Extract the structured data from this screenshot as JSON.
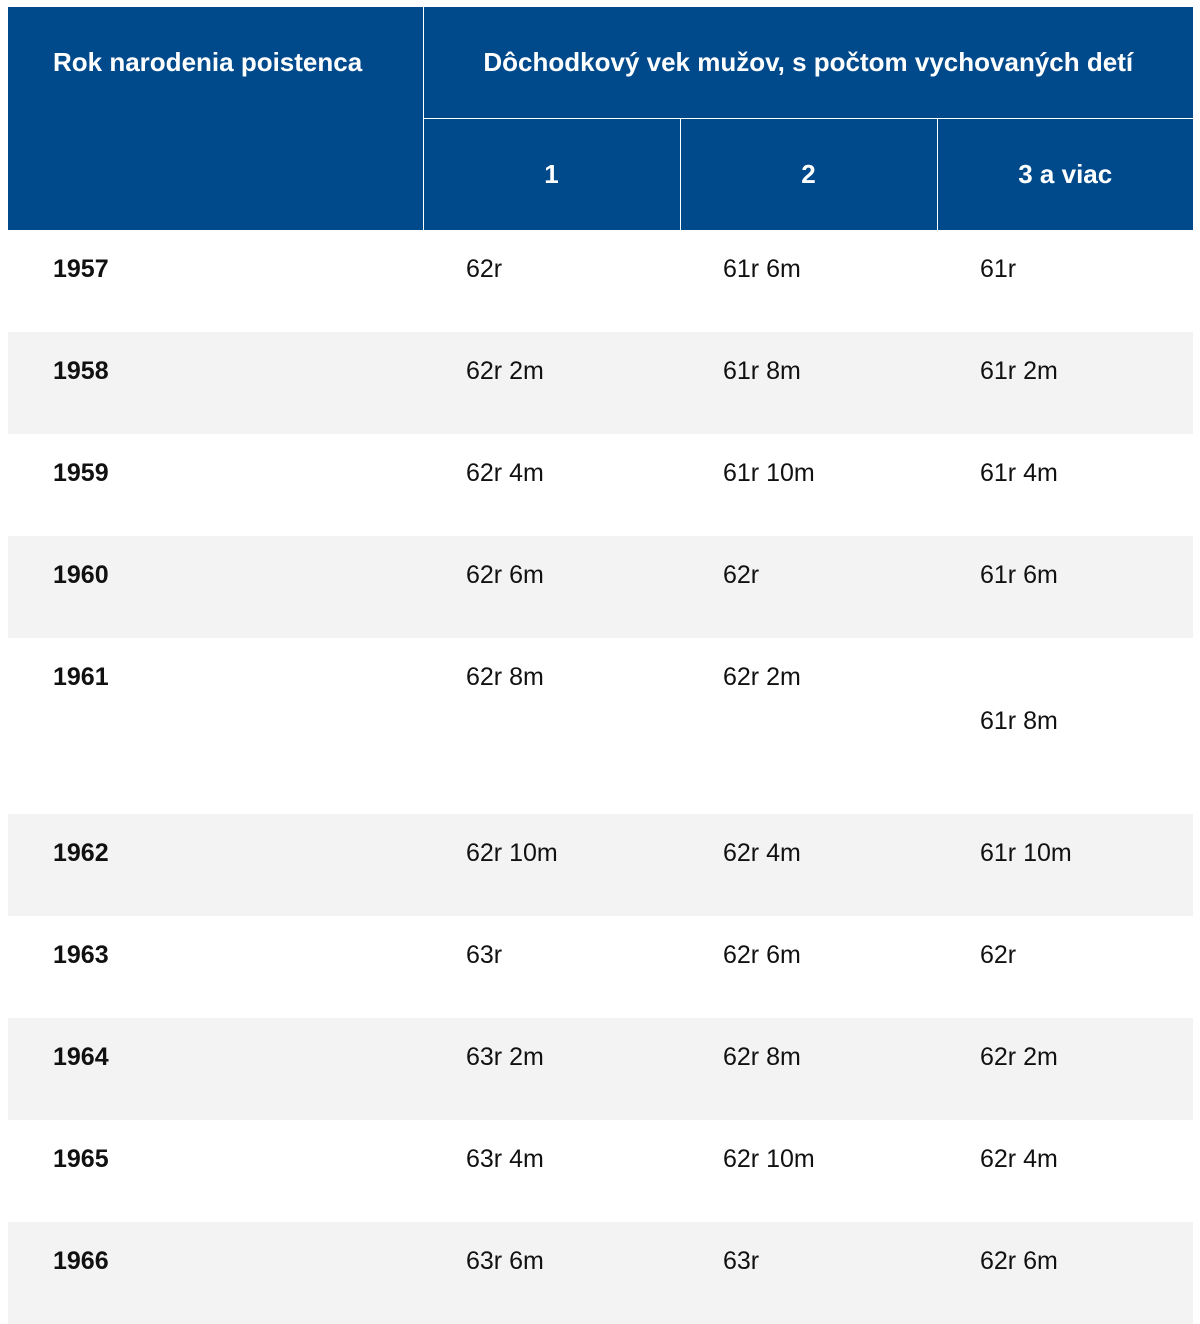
{
  "table": {
    "header": {
      "year_label": "Rok narodenia poistenca",
      "group_label": "Dôchodkový vek mužov, s počtom vychovaných detí",
      "columns": [
        "1",
        "2",
        "3 a viac"
      ]
    },
    "rows": [
      {
        "year": "1957",
        "c1": "62r",
        "c2": "61r 6m",
        "c3": "61r"
      },
      {
        "year": "1958",
        "c1": "62r 2m",
        "c2": "61r 8m",
        "c3": "61r 2m"
      },
      {
        "year": "1959",
        "c1": "62r 4m",
        "c2": "61r 10m",
        "c3": "61r 4m"
      },
      {
        "year": "1960",
        "c1": "62r 6m",
        "c2": "62r",
        "c3": "61r 6m"
      },
      {
        "year": "1961",
        "c1": "62r 8m",
        "c2": "62r 2m",
        "c3": "61r 8m"
      },
      {
        "year": "1962",
        "c1": "62r 10m",
        "c2": "62r 4m",
        "c3": "61r 10m"
      },
      {
        "year": "1963",
        "c1": "63r",
        "c2": "62r 6m",
        "c3": "62r"
      },
      {
        "year": "1964",
        "c1": "63r 2m",
        "c2": "62r 8m",
        "c3": "62r 2m"
      },
      {
        "year": "1965",
        "c1": "63r 4m",
        "c2": "62r 10m",
        "c3": "62r 4m"
      },
      {
        "year": "1966",
        "c1": "63r 6m",
        "c2": "63r",
        "c3": "62r 6m"
      }
    ]
  },
  "colors": {
    "header_bg": "#004a8c",
    "header_text": "#ffffff",
    "row_alt_bg": "#f3f3f3"
  }
}
